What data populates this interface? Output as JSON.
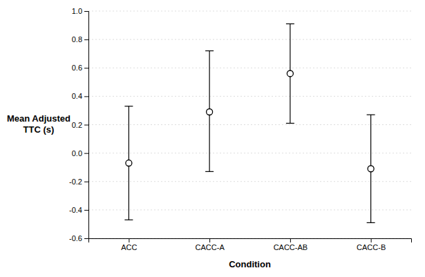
{
  "chart_data": {
    "type": "errorbar",
    "categories": [
      "ACC",
      "CACC-A",
      "CACC-AB",
      "CACC-B"
    ],
    "values": [
      -0.07,
      0.29,
      0.56,
      -0.11
    ],
    "ci_lower": [
      -0.47,
      -0.13,
      0.21,
      -0.49
    ],
    "ci_upper": [
      0.33,
      0.72,
      0.91,
      0.27
    ],
    "xlabel": "Condition",
    "ylabel": [
      "Mean Adjusted",
      "TTC (s)"
    ],
    "ylim": [
      -0.6,
      1.0
    ],
    "yticks": [
      -0.6,
      -0.4,
      -0.2,
      {
        "value": 0.0,
        "label": "0.0"
      },
      0.2,
      0.4,
      0.6,
      0.8,
      {
        "value": 1.0,
        "label": "1.0"
      }
    ],
    "grid": true,
    "color": "black",
    "marker": "circle"
  }
}
